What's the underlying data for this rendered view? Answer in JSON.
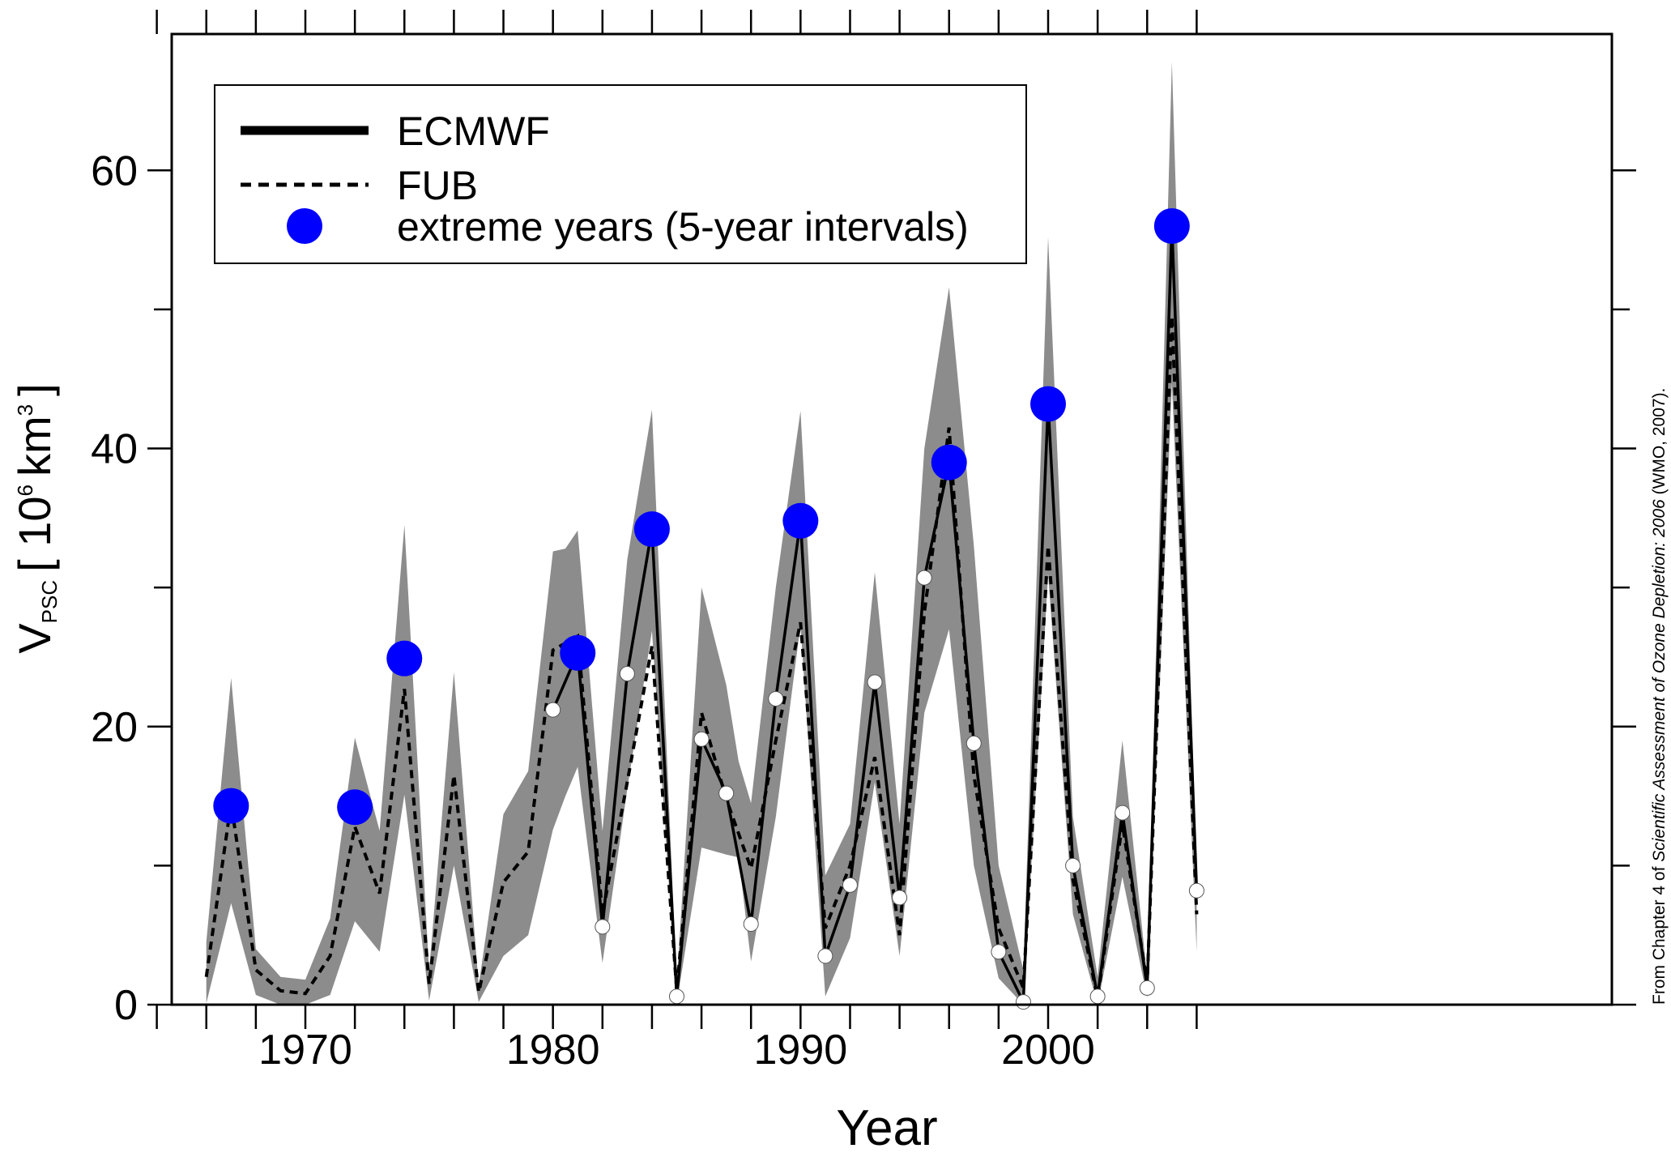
{
  "chart_data": {
    "type": "line",
    "title": "",
    "xlabel": "Year",
    "ylabel": {
      "main": "V",
      "subscript": "PSC",
      "unit_prefix": "[ 10",
      "unit_exp1": "6",
      "unit_mid": "km",
      "unit_exp2": "3",
      "unit_suffix": "]"
    },
    "xlim": [
      1962.5,
      2007.5
    ],
    "ylim": [
      0,
      68
    ],
    "x_ticks": [
      1970,
      1980,
      1990,
      2000
    ],
    "y_ticks": [
      0,
      20,
      40,
      60
    ],
    "legend": {
      "placement": "top-left",
      "entries": [
        "ECMWF",
        "FUB",
        "extreme years (5-year intervals)"
      ]
    },
    "colors": {
      "band": "#8c8c8c",
      "line": "#000000",
      "extreme": "#0000ff",
      "marker": "#ffffff"
    },
    "band": {
      "x": [
        1966,
        1967,
        1968,
        1969,
        1970,
        1971,
        1972,
        1973,
        1974,
        1975,
        1976,
        1977,
        1978,
        1979,
        1980,
        1980.5,
        1981,
        1982,
        1983,
        1984,
        1985,
        1986,
        1987,
        1987.5,
        1988,
        1989,
        1990,
        1991,
        1992,
        1993,
        1994,
        1995,
        1996,
        1997,
        1998,
        1999,
        2000,
        2001,
        2002,
        2003,
        2004,
        2005,
        2006
      ],
      "upper": [
        4.5,
        23.5,
        4,
        2,
        1.8,
        6.2,
        19.2,
        12.5,
        34.5,
        2.4,
        23.9,
        1.4,
        13.7,
        16.8,
        32.6,
        32.8,
        34.1,
        12.5,
        32,
        42.8,
        1.5,
        30,
        23,
        17.5,
        14.5,
        30,
        42.7,
        9.3,
        13,
        31.1,
        13,
        40,
        51.6,
        33,
        10,
        2.5,
        55.2,
        13.5,
        2,
        19,
        2,
        67.8,
        9
      ],
      "lower": [
        0.1,
        7.3,
        0.7,
        0,
        0,
        0.7,
        6,
        3.8,
        15.1,
        0.3,
        10,
        0.2,
        3.5,
        5,
        12.6,
        15,
        17.1,
        3,
        15.5,
        26.9,
        0.1,
        11.3,
        10.8,
        10.6,
        3.1,
        13.5,
        27.3,
        0.6,
        4.8,
        16,
        3.5,
        21,
        27,
        10,
        1.9,
        0,
        31,
        6.5,
        0,
        9.2,
        0.5,
        44.7,
        3.8
      ]
    },
    "series": [
      {
        "name": "ECMWF",
        "x": [
          1980,
          1981,
          1982,
          1983,
          1984,
          1985,
          1986,
          1987,
          1988,
          1989,
          1990,
          1991,
          1992,
          1993,
          1994,
          1995,
          1996,
          1997,
          1998,
          1999,
          2000,
          2001,
          2002,
          2003,
          2004,
          2005,
          2006
        ],
        "y": [
          21.2,
          25.3,
          5.6,
          23.8,
          34.2,
          0.6,
          19.1,
          15.2,
          5.8,
          22,
          34.8,
          3.5,
          8.6,
          23.2,
          7.7,
          30.7,
          39,
          18.8,
          3.8,
          0.2,
          43.2,
          10,
          0.6,
          13.8,
          1.2,
          56,
          8.2
        ]
      },
      {
        "name": "FUB",
        "x": [
          1966,
          1967,
          1968,
          1969,
          1970,
          1971,
          1972,
          1973,
          1974,
          1975,
          1976,
          1977,
          1978,
          1979,
          1980,
          1981,
          1982,
          1983,
          1984,
          1985,
          1986,
          1987,
          1988,
          1989,
          1990,
          1991,
          1992,
          1993,
          1994,
          1995,
          1996,
          1997,
          1998,
          1999,
          2000,
          2001,
          2002,
          2003,
          2004,
          2005,
          2006
        ],
        "y": [
          2,
          14.5,
          2.5,
          1,
          0.8,
          3.5,
          12.8,
          8,
          22.7,
          1.5,
          16.5,
          0.9,
          8.8,
          11,
          25.5,
          26.5,
          6.5,
          16,
          25.8,
          1,
          21,
          14.8,
          9.8,
          19,
          27.5,
          5.5,
          10,
          17.8,
          5,
          28.2,
          41.5,
          16.5,
          5.5,
          1.2,
          33,
          9,
          0.5,
          13,
          1.5,
          49.5,
          6.5
        ]
      }
    ],
    "extreme_years": {
      "x": [
        1967,
        1972,
        1974,
        1981,
        1984,
        1990,
        1996,
        2000,
        2005
      ],
      "y": [
        14.3,
        14.2,
        24.9,
        25.3,
        34.2,
        34.8,
        39,
        43.2,
        56
      ]
    },
    "markers": {
      "x": [
        1980,
        1982,
        1983,
        1985,
        1986,
        1987,
        1988,
        1989,
        1991,
        1992,
        1993,
        1994,
        1995,
        1997,
        1998,
        1999,
        2001,
        2002,
        2003,
        2004,
        2006
      ],
      "y": [
        21.2,
        5.6,
        23.8,
        0.6,
        19.1,
        15.2,
        5.8,
        22,
        3.5,
        8.6,
        23.2,
        7.7,
        30.7,
        18.8,
        3.8,
        0.2,
        10,
        0.6,
        13.8,
        1.2,
        8.2
      ]
    }
  },
  "source_note": {
    "prefix": "From Chapter 4 of ",
    "italic": "Scientific Assessment of Ozone Depletion: 2006",
    "suffix": " (WMO, 2007)."
  }
}
